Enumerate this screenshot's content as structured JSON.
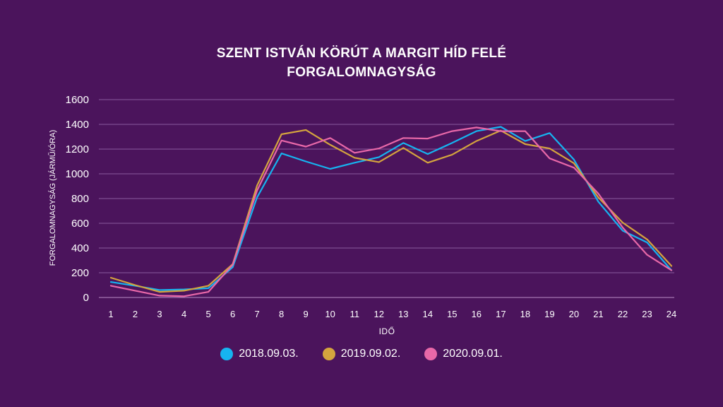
{
  "chart_data": {
    "type": "line",
    "title": "SZENT ISTVÁN KÖRÚT A MARGIT HÍD FELÉ",
    "subtitle": "FORGALOMNAGYSÁG",
    "xlabel": "IDŐ",
    "ylabel": "FORGALOMNAGYSÁG (JÁRMŰ/ÓRA)",
    "ylim": [
      0,
      1600
    ],
    "yticks": [
      0,
      200,
      400,
      600,
      800,
      1000,
      1200,
      1400,
      1600
    ],
    "categories": [
      "1",
      "2",
      "3",
      "4",
      "5",
      "6",
      "7",
      "8",
      "9",
      "10",
      "11",
      "12",
      "13",
      "14",
      "15",
      "16",
      "17",
      "18",
      "19",
      "20",
      "21",
      "22",
      "23",
      "24"
    ],
    "grid": true,
    "legend_position": "bottom",
    "series": [
      {
        "name": "2018.09.03.",
        "color": "#16b4f0",
        "values": [
          125,
          95,
          60,
          65,
          75,
          245,
          810,
          1165,
          1100,
          1040,
          1090,
          1135,
          1250,
          1160,
          1250,
          1345,
          1380,
          1265,
          1330,
          1115,
          775,
          540,
          445,
          220
        ]
      },
      {
        "name": "2019.09.02.",
        "color": "#d4a43e",
        "values": [
          160,
          100,
          45,
          55,
          95,
          270,
          905,
          1320,
          1355,
          1235,
          1130,
          1095,
          1210,
          1090,
          1155,
          1265,
          1350,
          1240,
          1205,
          1085,
          810,
          605,
          470,
          255
        ]
      },
      {
        "name": "2020.09.01.",
        "color": "#e868a8",
        "values": [
          95,
          55,
          15,
          10,
          45,
          265,
          865,
          1270,
          1220,
          1290,
          1170,
          1205,
          1290,
          1285,
          1345,
          1375,
          1345,
          1345,
          1125,
          1050,
          840,
          565,
          345,
          220
        ]
      }
    ]
  }
}
